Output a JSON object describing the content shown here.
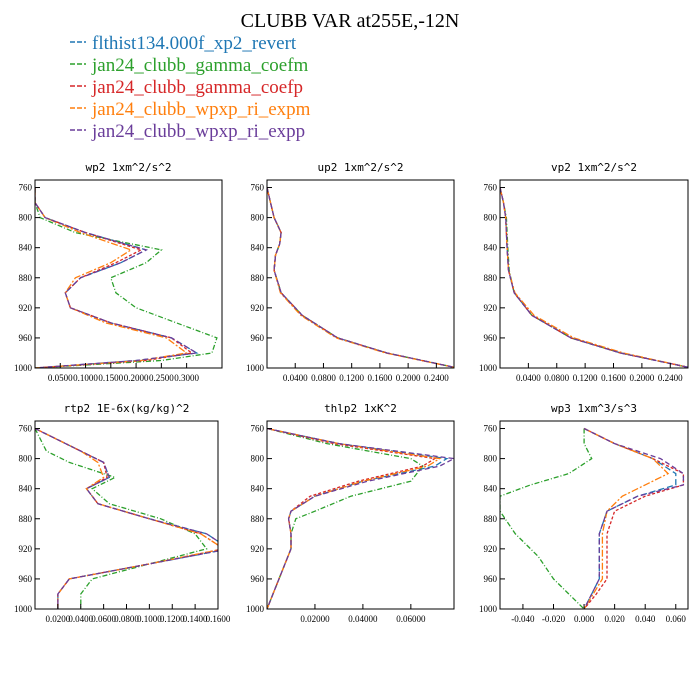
{
  "figure": {
    "title": "CLUBB VAR at255E,-12N",
    "legend": [
      {
        "label": "flthist134.000f_xp2_revert",
        "color": "#1f77b4"
      },
      {
        "label": "jan24_clubb_gamma_coefm",
        "color": "#2ca02c"
      },
      {
        "label": "jan24_clubb_gamma_coefp",
        "color": "#d62728"
      },
      {
        "label": "jan24_clubb_wpxp_ri_expm",
        "color": "#ff7f0e"
      },
      {
        "label": "jan24_clubb_wpxp_ri_expp",
        "color": "#6a3d9a"
      }
    ]
  },
  "chart_data": [
    {
      "type": "line",
      "title": "wp2 1xm^2/s^2",
      "xlim": [
        0.0,
        0.37
      ],
      "ylim": [
        1000,
        750
      ],
      "xticks": [
        {
          "v": 0.05,
          "t": "0.0500"
        },
        {
          "v": 0.1,
          "t": "0.1000"
        },
        {
          "v": 0.15,
          "t": "0.1500"
        },
        {
          "v": 0.2,
          "t": "0.2000"
        },
        {
          "v": 0.25,
          "t": "0.2500"
        },
        {
          "v": 0.3,
          "t": "0.3000"
        }
      ],
      "yticks": [
        760,
        800,
        840,
        880,
        920,
        960,
        1000
      ],
      "y": [
        760,
        780,
        800,
        820,
        843,
        860,
        880,
        900,
        920,
        940,
        960,
        980,
        990,
        1000
      ],
      "series": [
        {
          "color": "#1f77b4",
          "values": [
            0.0,
            0.0,
            0.02,
            0.1,
            0.22,
            0.17,
            0.09,
            0.06,
            0.07,
            0.15,
            0.27,
            0.32,
            0.2,
            0.0
          ]
        },
        {
          "color": "#2ca02c",
          "values": [
            0.0,
            0.0,
            0.01,
            0.08,
            0.25,
            0.22,
            0.15,
            0.16,
            0.2,
            0.28,
            0.36,
            0.35,
            0.25,
            0.0
          ]
        },
        {
          "color": "#d62728",
          "values": [
            0.0,
            0.0,
            0.02,
            0.1,
            0.21,
            0.16,
            0.09,
            0.06,
            0.07,
            0.15,
            0.27,
            0.31,
            0.22,
            0.0
          ]
        },
        {
          "color": "#ff7f0e",
          "values": [
            0.0,
            0.0,
            0.02,
            0.09,
            0.19,
            0.15,
            0.08,
            0.06,
            0.07,
            0.14,
            0.26,
            0.3,
            0.21,
            0.0
          ]
        },
        {
          "color": "#6a3d9a",
          "values": [
            0.0,
            0.0,
            0.02,
            0.1,
            0.22,
            0.17,
            0.09,
            0.06,
            0.07,
            0.15,
            0.27,
            0.32,
            0.2,
            0.0
          ]
        }
      ]
    },
    {
      "type": "line",
      "title": "up2 1xm^2/s^2",
      "xlim": [
        0.0,
        0.265
      ],
      "ylim": [
        1000,
        750
      ],
      "xticks": [
        {
          "v": 0.04,
          "t": "0.0400"
        },
        {
          "v": 0.08,
          "t": "0.0800"
        },
        {
          "v": 0.12,
          "t": "0.1200"
        },
        {
          "v": 0.16,
          "t": "0.1600"
        },
        {
          "v": 0.2,
          "t": "0.2000"
        },
        {
          "v": 0.24,
          "t": "0.2400"
        }
      ],
      "yticks": [
        760,
        800,
        840,
        880,
        920,
        960,
        1000
      ],
      "y": [
        760,
        780,
        800,
        820,
        835,
        850,
        870,
        900,
        930,
        960,
        980,
        1000
      ],
      "series": [
        {
          "color": "#1f77b4",
          "values": [
            0.0,
            0.005,
            0.01,
            0.02,
            0.018,
            0.012,
            0.01,
            0.02,
            0.05,
            0.1,
            0.17,
            0.27
          ]
        },
        {
          "color": "#2ca02c",
          "values": [
            0.0,
            0.005,
            0.01,
            0.02,
            0.018,
            0.012,
            0.01,
            0.02,
            0.05,
            0.1,
            0.17,
            0.27
          ]
        },
        {
          "color": "#d62728",
          "values": [
            0.0,
            0.005,
            0.01,
            0.02,
            0.018,
            0.012,
            0.01,
            0.02,
            0.05,
            0.1,
            0.17,
            0.27
          ]
        },
        {
          "color": "#ff7f0e",
          "values": [
            0.0,
            0.005,
            0.01,
            0.02,
            0.018,
            0.012,
            0.01,
            0.019,
            0.048,
            0.098,
            0.168,
            0.27
          ]
        },
        {
          "color": "#6a3d9a",
          "values": [
            0.0,
            0.005,
            0.01,
            0.02,
            0.018,
            0.012,
            0.01,
            0.02,
            0.05,
            0.1,
            0.17,
            0.27
          ]
        }
      ]
    },
    {
      "type": "line",
      "title": "vp2 1xm^2/s^2",
      "xlim": [
        0.0,
        0.265
      ],
      "ylim": [
        1000,
        750
      ],
      "xticks": [
        {
          "v": 0.04,
          "t": "0.0400"
        },
        {
          "v": 0.08,
          "t": "0.0800"
        },
        {
          "v": 0.12,
          "t": "0.1200"
        },
        {
          "v": 0.16,
          "t": "0.1600"
        },
        {
          "v": 0.2,
          "t": "0.2000"
        },
        {
          "v": 0.24,
          "t": "0.2400"
        }
      ],
      "yticks": [
        760,
        800,
        840,
        880,
        920,
        960,
        1000
      ],
      "y": [
        760,
        780,
        800,
        840,
        870,
        900,
        930,
        960,
        980,
        1000
      ],
      "series": [
        {
          "color": "#1f77b4",
          "values": [
            0.0,
            0.005,
            0.008,
            0.01,
            0.012,
            0.02,
            0.045,
            0.1,
            0.17,
            0.27
          ]
        },
        {
          "color": "#2ca02c",
          "values": [
            0.0,
            0.005,
            0.009,
            0.011,
            0.013,
            0.02,
            0.045,
            0.1,
            0.17,
            0.27
          ]
        },
        {
          "color": "#d62728",
          "values": [
            0.0,
            0.005,
            0.008,
            0.01,
            0.012,
            0.02,
            0.045,
            0.1,
            0.17,
            0.27
          ]
        },
        {
          "color": "#ff7f0e",
          "values": [
            0.0,
            0.005,
            0.008,
            0.01,
            0.012,
            0.021,
            0.048,
            0.104,
            0.174,
            0.27
          ]
        },
        {
          "color": "#6a3d9a",
          "values": [
            0.0,
            0.005,
            0.008,
            0.01,
            0.012,
            0.02,
            0.045,
            0.1,
            0.17,
            0.27
          ]
        }
      ]
    },
    {
      "type": "line",
      "title": "rtp2 1E-6x(kg/kg)^2",
      "xlim": [
        0.0,
        0.16
      ],
      "ylim": [
        1000,
        750
      ],
      "xticks": [
        {
          "v": 0.02,
          "t": "0.0200"
        },
        {
          "v": 0.04,
          "t": "0.0400"
        },
        {
          "v": 0.06,
          "t": "0.0600"
        },
        {
          "v": 0.08,
          "t": "0.0800"
        },
        {
          "v": 0.1,
          "t": "0.1000"
        },
        {
          "v": 0.12,
          "t": "0.1200"
        },
        {
          "v": 0.14,
          "t": "0.1400"
        },
        {
          "v": 0.16,
          "t": "0.1600"
        }
      ],
      "yticks": [
        760,
        800,
        840,
        880,
        920,
        960,
        1000
      ],
      "y": [
        760,
        790,
        805,
        825,
        840,
        860,
        880,
        900,
        920,
        940,
        960,
        980,
        990,
        1000
      ],
      "series": [
        {
          "color": "#1f77b4",
          "values": [
            0.0,
            0.04,
            0.06,
            0.065,
            0.045,
            0.055,
            0.1,
            0.15,
            0.17,
            0.1,
            0.03,
            0.02,
            0.02,
            0.02
          ]
        },
        {
          "color": "#2ca02c",
          "values": [
            0.0,
            0.01,
            0.03,
            0.07,
            0.05,
            0.065,
            0.11,
            0.14,
            0.15,
            0.1,
            0.05,
            0.04,
            0.04,
            0.04
          ]
        },
        {
          "color": "#d62728",
          "values": [
            0.0,
            0.04,
            0.06,
            0.063,
            0.045,
            0.055,
            0.1,
            0.145,
            0.165,
            0.1,
            0.03,
            0.02,
            0.02,
            0.02
          ]
        },
        {
          "color": "#ff7f0e",
          "values": [
            0.0,
            0.04,
            0.055,
            0.06,
            0.045,
            0.055,
            0.1,
            0.145,
            0.165,
            0.1,
            0.03,
            0.02,
            0.02,
            0.02
          ]
        },
        {
          "color": "#6a3d9a",
          "values": [
            0.0,
            0.04,
            0.06,
            0.065,
            0.045,
            0.055,
            0.1,
            0.15,
            0.17,
            0.1,
            0.03,
            0.02,
            0.02,
            0.02
          ]
        }
      ]
    },
    {
      "type": "line",
      "title": "thlp2 1xK^2",
      "xlim": [
        0.0,
        0.078
      ],
      "ylim": [
        1000,
        750
      ],
      "xticks": [
        {
          "v": 0.02,
          "t": "0.02000"
        },
        {
          "v": 0.04,
          "t": "0.04000"
        },
        {
          "v": 0.06,
          "t": "0.06000"
        }
      ],
      "yticks": [
        760,
        800,
        840,
        880,
        920,
        960,
        1000
      ],
      "y": [
        760,
        780,
        800,
        810,
        830,
        850,
        870,
        880,
        900,
        920,
        960,
        1000
      ],
      "series": [
        {
          "color": "#1f77b4",
          "values": [
            0.0,
            0.03,
            0.075,
            0.07,
            0.04,
            0.02,
            0.01,
            0.009,
            0.01,
            0.01,
            0.005,
            0.0
          ]
        },
        {
          "color": "#2ca02c",
          "values": [
            0.0,
            0.025,
            0.06,
            0.065,
            0.06,
            0.035,
            0.02,
            0.012,
            0.01,
            0.01,
            0.005,
            0.0
          ]
        },
        {
          "color": "#d62728",
          "values": [
            0.0,
            0.028,
            0.07,
            0.065,
            0.038,
            0.018,
            0.01,
            0.009,
            0.01,
            0.01,
            0.005,
            0.0
          ]
        },
        {
          "color": "#ff7f0e",
          "values": [
            0.0,
            0.03,
            0.072,
            0.067,
            0.04,
            0.02,
            0.01,
            0.009,
            0.01,
            0.01,
            0.005,
            0.0
          ]
        },
        {
          "color": "#6a3d9a",
          "values": [
            0.0,
            0.03,
            0.078,
            0.072,
            0.042,
            0.02,
            0.01,
            0.009,
            0.01,
            0.01,
            0.005,
            0.0
          ]
        }
      ]
    },
    {
      "type": "line",
      "title": "wp3 1xm^3/s^3",
      "xlim": [
        -0.055,
        0.068
      ],
      "ylim": [
        1000,
        750
      ],
      "xticks": [
        {
          "v": -0.04,
          "t": "-0.040"
        },
        {
          "v": -0.02,
          "t": "-0.020"
        },
        {
          "v": 0.0,
          "t": "0.000"
        },
        {
          "v": 0.02,
          "t": "0.020"
        },
        {
          "v": 0.04,
          "t": "0.040"
        },
        {
          "v": 0.06,
          "t": "0.060"
        }
      ],
      "yticks": [
        760,
        800,
        840,
        880,
        920,
        960,
        1000
      ],
      "y": [
        760,
        780,
        800,
        820,
        835,
        850,
        870,
        900,
        930,
        960,
        980,
        1000
      ],
      "series": [
        {
          "color": "#1f77b4",
          "values": [
            0.0,
            0.02,
            0.045,
            0.06,
            0.06,
            0.035,
            0.015,
            0.01,
            0.01,
            0.01,
            0.005,
            0.0
          ]
        },
        {
          "color": "#2ca02c",
          "values": [
            0.0,
            0.0,
            0.005,
            -0.01,
            -0.035,
            -0.055,
            -0.055,
            -0.045,
            -0.03,
            -0.02,
            -0.01,
            0.0
          ]
        },
        {
          "color": "#d62728",
          "values": [
            0.0,
            0.02,
            0.045,
            0.065,
            0.065,
            0.04,
            0.02,
            0.015,
            0.015,
            0.015,
            0.008,
            0.0
          ]
        },
        {
          "color": "#ff7f0e",
          "values": [
            0.0,
            0.02,
            0.045,
            0.055,
            0.04,
            0.025,
            0.015,
            0.012,
            0.012,
            0.012,
            0.006,
            0.0
          ]
        },
        {
          "color": "#6a3d9a",
          "values": [
            0.0,
            0.02,
            0.05,
            0.065,
            0.065,
            0.035,
            0.015,
            0.01,
            0.01,
            0.01,
            0.005,
            0.0
          ]
        }
      ]
    }
  ]
}
